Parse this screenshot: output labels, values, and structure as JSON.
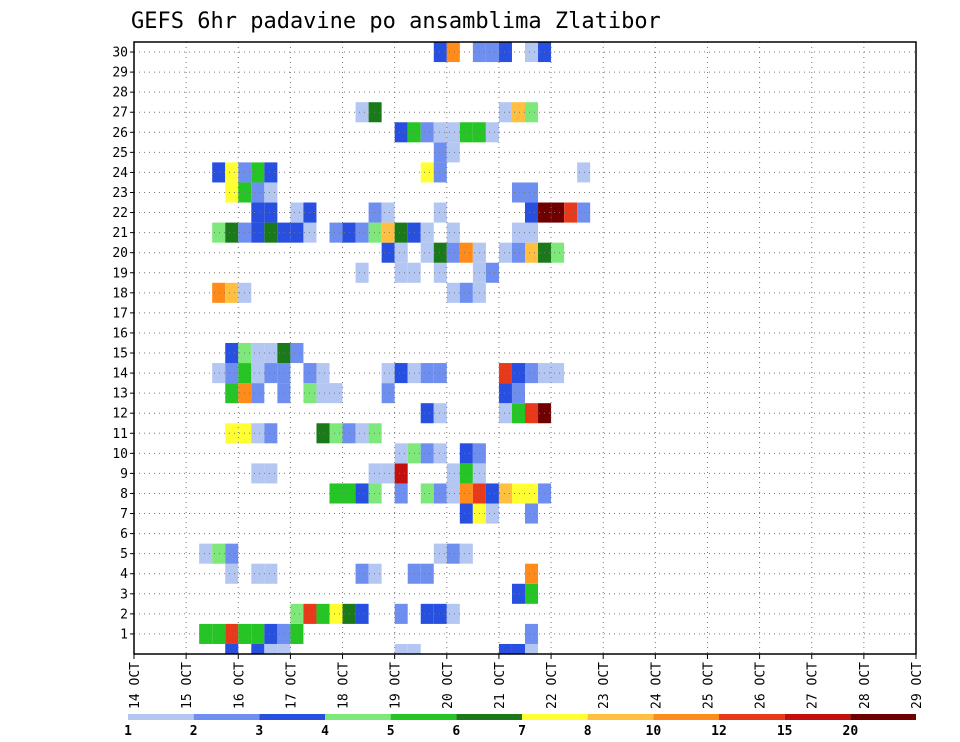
{
  "chart_data": {
    "type": "heatmap",
    "title": "GEFS 6hr padavine po ansamblima Zlatibor",
    "xlabel": "",
    "ylabel": "",
    "x_step": "6 h",
    "x_start_label": "14 OCT",
    "x_labels": [
      "14 OCT",
      "15 OCT",
      "16 OCT",
      "17 OCT",
      "18 OCT",
      "19 OCT",
      "20 OCT",
      "21 OCT",
      "22 OCT",
      "23 OCT",
      "24 OCT",
      "25 OCT",
      "26 OCT",
      "27 OCT",
      "28 OCT",
      "29 OCT"
    ],
    "y_labels": [
      "1",
      "2",
      "3",
      "4",
      "5",
      "6",
      "7",
      "8",
      "9",
      "10",
      "11",
      "12",
      "13",
      "14",
      "15",
      "16",
      "17",
      "18",
      "19",
      "20",
      "21",
      "22",
      "23",
      "24",
      "25",
      "26",
      "27",
      "28",
      "29",
      "30"
    ],
    "ylim": [
      0,
      30
    ],
    "grid": true,
    "colorbar": {
      "position": "bottom",
      "labels": [
        "1",
        "2",
        "3",
        "4",
        "5",
        "6",
        "7",
        "8",
        "10",
        "12",
        "15",
        "20"
      ],
      "colors": [
        "#b4c7f3",
        "#6f8ff0",
        "#2850e0",
        "#7fe87a",
        "#26c526",
        "#1a7a1a",
        "#ffff33",
        "#ffbf40",
        "#ff8c1a",
        "#e83a1a",
        "#c40f0f",
        "#700000"
      ]
    },
    "cells": [
      [
        7,
        0,
        3
      ],
      [
        9,
        0,
        3
      ],
      [
        10,
        0,
        1
      ],
      [
        11,
        0,
        1
      ],
      [
        20,
        0,
        1
      ],
      [
        21,
        0,
        1
      ],
      [
        28,
        0,
        3
      ],
      [
        29,
        0,
        3
      ],
      [
        30,
        0,
        1
      ],
      [
        5,
        1,
        5
      ],
      [
        6,
        1,
        5
      ],
      [
        7,
        1,
        10
      ],
      [
        8,
        1,
        5
      ],
      [
        9,
        1,
        5
      ],
      [
        10,
        1,
        3
      ],
      [
        11,
        1,
        2
      ],
      [
        12,
        1,
        5
      ],
      [
        30,
        1,
        2
      ],
      [
        12,
        2,
        4
      ],
      [
        13,
        2,
        10
      ],
      [
        14,
        2,
        5
      ],
      [
        15,
        2,
        7
      ],
      [
        16,
        2,
        6
      ],
      [
        17,
        2,
        3
      ],
      [
        20,
        2,
        2
      ],
      [
        22,
        2,
        3
      ],
      [
        23,
        2,
        3
      ],
      [
        24,
        2,
        1
      ],
      [
        29,
        3,
        3
      ],
      [
        30,
        3,
        5
      ],
      [
        7,
        4,
        1
      ],
      [
        9,
        4,
        1
      ],
      [
        10,
        4,
        1
      ],
      [
        17,
        4,
        2
      ],
      [
        18,
        4,
        1
      ],
      [
        21,
        4,
        2
      ],
      [
        22,
        4,
        2
      ],
      [
        30,
        4,
        9
      ],
      [
        5,
        5,
        1
      ],
      [
        6,
        5,
        4
      ],
      [
        7,
        5,
        2
      ],
      [
        23,
        5,
        1
      ],
      [
        24,
        5,
        2
      ],
      [
        25,
        5,
        1
      ],
      [
        25,
        7,
        3
      ],
      [
        26,
        7,
        7
      ],
      [
        27,
        7,
        1
      ],
      [
        30,
        7,
        2
      ],
      [
        15,
        8,
        5
      ],
      [
        16,
        8,
        5
      ],
      [
        17,
        8,
        3
      ],
      [
        18,
        8,
        4
      ],
      [
        20,
        8,
        2
      ],
      [
        22,
        8,
        4
      ],
      [
        23,
        8,
        2
      ],
      [
        24,
        8,
        1
      ],
      [
        25,
        8,
        9
      ],
      [
        26,
        8,
        10
      ],
      [
        27,
        8,
        3
      ],
      [
        28,
        8,
        8
      ],
      [
        29,
        8,
        7
      ],
      [
        30,
        8,
        7
      ],
      [
        31,
        8,
        2
      ],
      [
        9,
        9,
        1
      ],
      [
        10,
        9,
        1
      ],
      [
        18,
        9,
        1
      ],
      [
        19,
        9,
        1
      ],
      [
        20,
        9,
        11
      ],
      [
        24,
        9,
        1
      ],
      [
        25,
        9,
        5
      ],
      [
        26,
        9,
        1
      ],
      [
        20,
        10,
        1
      ],
      [
        21,
        10,
        4
      ],
      [
        22,
        10,
        2
      ],
      [
        23,
        10,
        1
      ],
      [
        25,
        10,
        3
      ],
      [
        26,
        10,
        2
      ],
      [
        7,
        11,
        7
      ],
      [
        8,
        11,
        7
      ],
      [
        9,
        11,
        1
      ],
      [
        10,
        11,
        2
      ],
      [
        14,
        11,
        6
      ],
      [
        15,
        11,
        4
      ],
      [
        16,
        11,
        2
      ],
      [
        17,
        11,
        1
      ],
      [
        18,
        11,
        4
      ],
      [
        22,
        12,
        3
      ],
      [
        23,
        12,
        1
      ],
      [
        28,
        12,
        1
      ],
      [
        29,
        12,
        5
      ],
      [
        30,
        12,
        10
      ],
      [
        31,
        12,
        12
      ],
      [
        7,
        13,
        5
      ],
      [
        8,
        13,
        9
      ],
      [
        9,
        13,
        2
      ],
      [
        11,
        13,
        2
      ],
      [
        13,
        13,
        4
      ],
      [
        14,
        13,
        1
      ],
      [
        15,
        13,
        1
      ],
      [
        19,
        13,
        2
      ],
      [
        28,
        13,
        3
      ],
      [
        29,
        13,
        2
      ],
      [
        6,
        14,
        1
      ],
      [
        7,
        14,
        2
      ],
      [
        8,
        14,
        5
      ],
      [
        9,
        14,
        1
      ],
      [
        10,
        14,
        2
      ],
      [
        11,
        14,
        2
      ],
      [
        13,
        14,
        2
      ],
      [
        14,
        14,
        1
      ],
      [
        19,
        14,
        1
      ],
      [
        20,
        14,
        3
      ],
      [
        21,
        14,
        1
      ],
      [
        22,
        14,
        2
      ],
      [
        23,
        14,
        2
      ],
      [
        28,
        14,
        10
      ],
      [
        29,
        14,
        3
      ],
      [
        30,
        14,
        2
      ],
      [
        31,
        14,
        1
      ],
      [
        32,
        14,
        1
      ],
      [
        7,
        15,
        3
      ],
      [
        8,
        15,
        4
      ],
      [
        9,
        15,
        1
      ],
      [
        10,
        15,
        1
      ],
      [
        11,
        15,
        6
      ],
      [
        12,
        15,
        2
      ],
      [
        6,
        18,
        9
      ],
      [
        7,
        18,
        8
      ],
      [
        8,
        18,
        1
      ],
      [
        24,
        18,
        1
      ],
      [
        25,
        18,
        2
      ],
      [
        26,
        18,
        1
      ],
      [
        17,
        19,
        1
      ],
      [
        20,
        19,
        1
      ],
      [
        21,
        19,
        1
      ],
      [
        23,
        19,
        1
      ],
      [
        26,
        19,
        1
      ],
      [
        27,
        19,
        2
      ],
      [
        19,
        20,
        3
      ],
      [
        20,
        20,
        1
      ],
      [
        22,
        20,
        1
      ],
      [
        23,
        20,
        6
      ],
      [
        24,
        20,
        2
      ],
      [
        25,
        20,
        9
      ],
      [
        26,
        20,
        1
      ],
      [
        28,
        20,
        1
      ],
      [
        29,
        20,
        2
      ],
      [
        30,
        20,
        8
      ],
      [
        31,
        20,
        6
      ],
      [
        32,
        20,
        4
      ],
      [
        6,
        21,
        4
      ],
      [
        7,
        21,
        6
      ],
      [
        8,
        21,
        2
      ],
      [
        9,
        21,
        3
      ],
      [
        10,
        21,
        6
      ],
      [
        11,
        21,
        3
      ],
      [
        12,
        21,
        3
      ],
      [
        13,
        21,
        1
      ],
      [
        15,
        21,
        2
      ],
      [
        16,
        21,
        3
      ],
      [
        17,
        21,
        2
      ],
      [
        18,
        21,
        4
      ],
      [
        19,
        21,
        8
      ],
      [
        20,
        21,
        6
      ],
      [
        21,
        21,
        3
      ],
      [
        22,
        21,
        1
      ],
      [
        24,
        21,
        1
      ],
      [
        29,
        21,
        1
      ],
      [
        30,
        21,
        1
      ],
      [
        9,
        22,
        3
      ],
      [
        10,
        22,
        3
      ],
      [
        12,
        22,
        1
      ],
      [
        13,
        22,
        3
      ],
      [
        18,
        22,
        2
      ],
      [
        19,
        22,
        1
      ],
      [
        23,
        22,
        1
      ],
      [
        30,
        22,
        3
      ],
      [
        31,
        22,
        12
      ],
      [
        32,
        22,
        12
      ],
      [
        33,
        22,
        10
      ],
      [
        34,
        22,
        2
      ],
      [
        7,
        23,
        7
      ],
      [
        8,
        23,
        5
      ],
      [
        9,
        23,
        2
      ],
      [
        10,
        23,
        1
      ],
      [
        29,
        23,
        2
      ],
      [
        30,
        23,
        2
      ],
      [
        6,
        24,
        3
      ],
      [
        7,
        24,
        7
      ],
      [
        8,
        24,
        2
      ],
      [
        9,
        24,
        5
      ],
      [
        10,
        24,
        3
      ],
      [
        22,
        24,
        7
      ],
      [
        23,
        24,
        2
      ],
      [
        34,
        24,
        1
      ],
      [
        23,
        25,
        2
      ],
      [
        24,
        25,
        1
      ],
      [
        20,
        26,
        3
      ],
      [
        21,
        26,
        5
      ],
      [
        22,
        26,
        2
      ],
      [
        23,
        26,
        1
      ],
      [
        24,
        26,
        1
      ],
      [
        25,
        26,
        5
      ],
      [
        26,
        26,
        5
      ],
      [
        27,
        26,
        1
      ],
      [
        17,
        27,
        1
      ],
      [
        18,
        27,
        6
      ],
      [
        28,
        27,
        1
      ],
      [
        29,
        27,
        8
      ],
      [
        30,
        27,
        4
      ],
      [
        23,
        30,
        3
      ],
      [
        24,
        30,
        9
      ],
      [
        26,
        30,
        2
      ],
      [
        27,
        30,
        2
      ],
      [
        28,
        30,
        3
      ],
      [
        30,
        30,
        1
      ],
      [
        31,
        30,
        3
      ]
    ]
  }
}
